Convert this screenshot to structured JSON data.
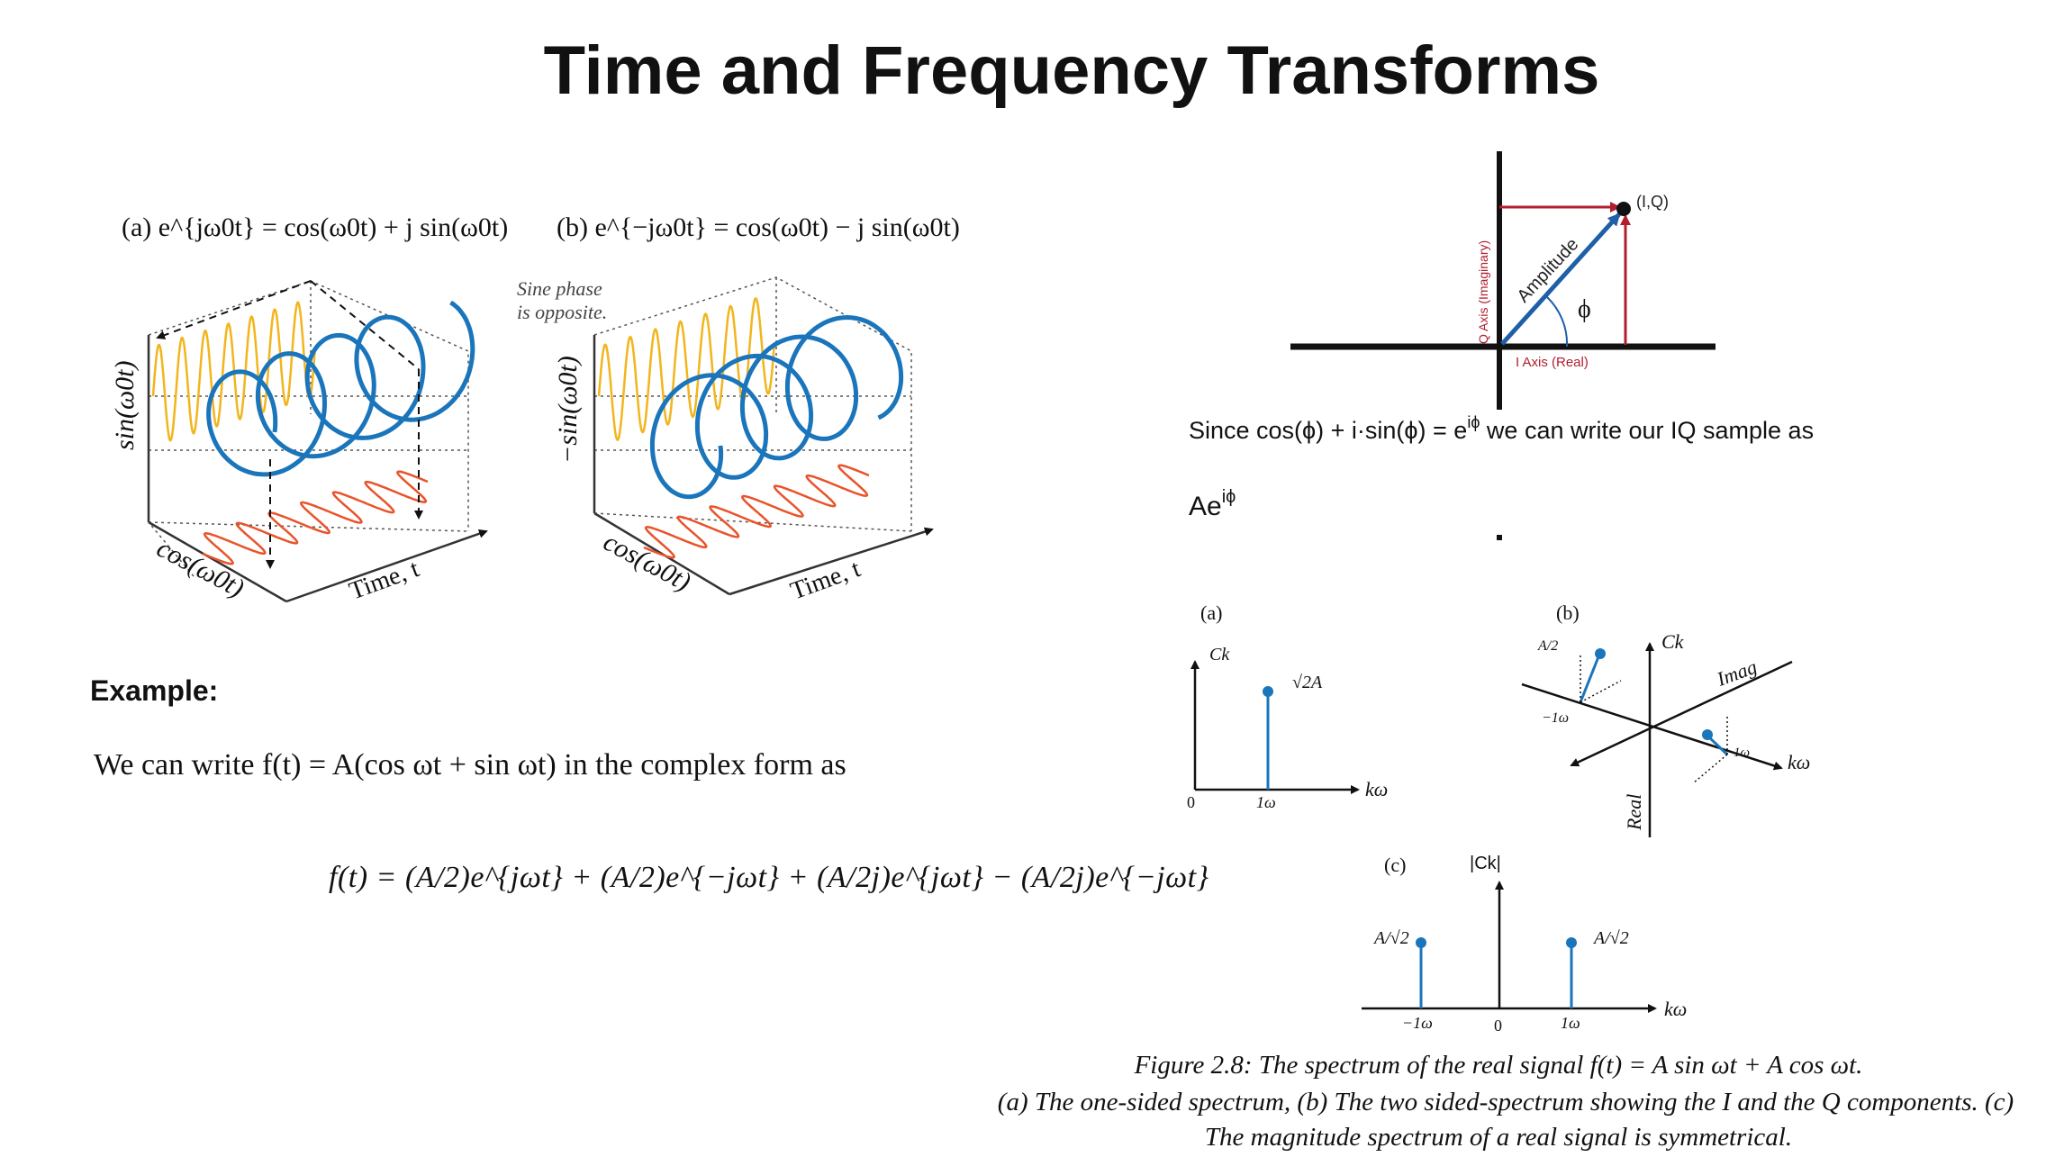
{
  "slide": {
    "title": "Time and Frequency Transforms"
  },
  "helix": {
    "a": {
      "eq": "(a)  e^{jω0t} = cos(ω0t) + j sin(ω0t)",
      "ylabel": "sin(ω0t)",
      "xlabel": "cos(ω0t)",
      "tlabel": "Time, t"
    },
    "b": {
      "eq": "(b)  e^{−jω0t} = cos(ω0t) − j sin(ω0t)",
      "note1": "Sine phase",
      "note2": "is opposite.",
      "ylabel": "−sin(ω0t)",
      "xlabel": "cos(ω0t)",
      "tlabel": "Time, t"
    }
  },
  "example": {
    "heading": "Example:",
    "line": "We can write f(t) = A(cos ωt + sin ωt) in the complex form as",
    "formula": "f(t) = (A/2)e^{jωt} + (A/2)e^{−jωt} + (A/2j)e^{jωt} − (A/2j)e^{−jωt}"
  },
  "iq": {
    "point_label": "(I,Q)",
    "amplitude": "Amplitude",
    "phi": "ϕ",
    "q_axis": "Q Axis (Imaginary)",
    "i_axis": "I Axis (Real)",
    "text_pre": "Since cos(ϕ) + i·sin(ϕ) = e",
    "text_sup": "iϕ",
    "text_post": " we can write our IQ sample as",
    "sample": "Ae",
    "sample_sup": "iϕ"
  },
  "spectrum": {
    "a": {
      "tag": "(a)",
      "ylabel": "Ck",
      "value": "√2A",
      "zero": "0",
      "tick": "1ω",
      "xlabel": "kω"
    },
    "b": {
      "tag": "(b)",
      "ck": "Ck",
      "imag": "Imag",
      "real": "Real",
      "neg": "−1ω",
      "pos": "1ω",
      "xlabel": "kω",
      "frac": "A/2"
    },
    "c": {
      "tag": "(c)",
      "ylabel": "|Ck|",
      "neg": "−1ω",
      "zero": "0",
      "pos": "1ω",
      "xlabel": "kω",
      "frac": "A/√2"
    },
    "caption1": "Figure 2.8: The spectrum of the real signal f(t) = A sin ωt + A cos ωt.",
    "caption2": "(a) The one-sided spectrum, (b) The two sided-spectrum showing the I and the Q components. (c)",
    "caption3": "The magnitude spectrum of a real signal is symmetrical."
  },
  "colors": {
    "blue": "#1a75bb",
    "orange": "#e8542a",
    "yellow": "#f2b51c",
    "red": "#b11f2e",
    "navy": "#1f5fa8"
  }
}
